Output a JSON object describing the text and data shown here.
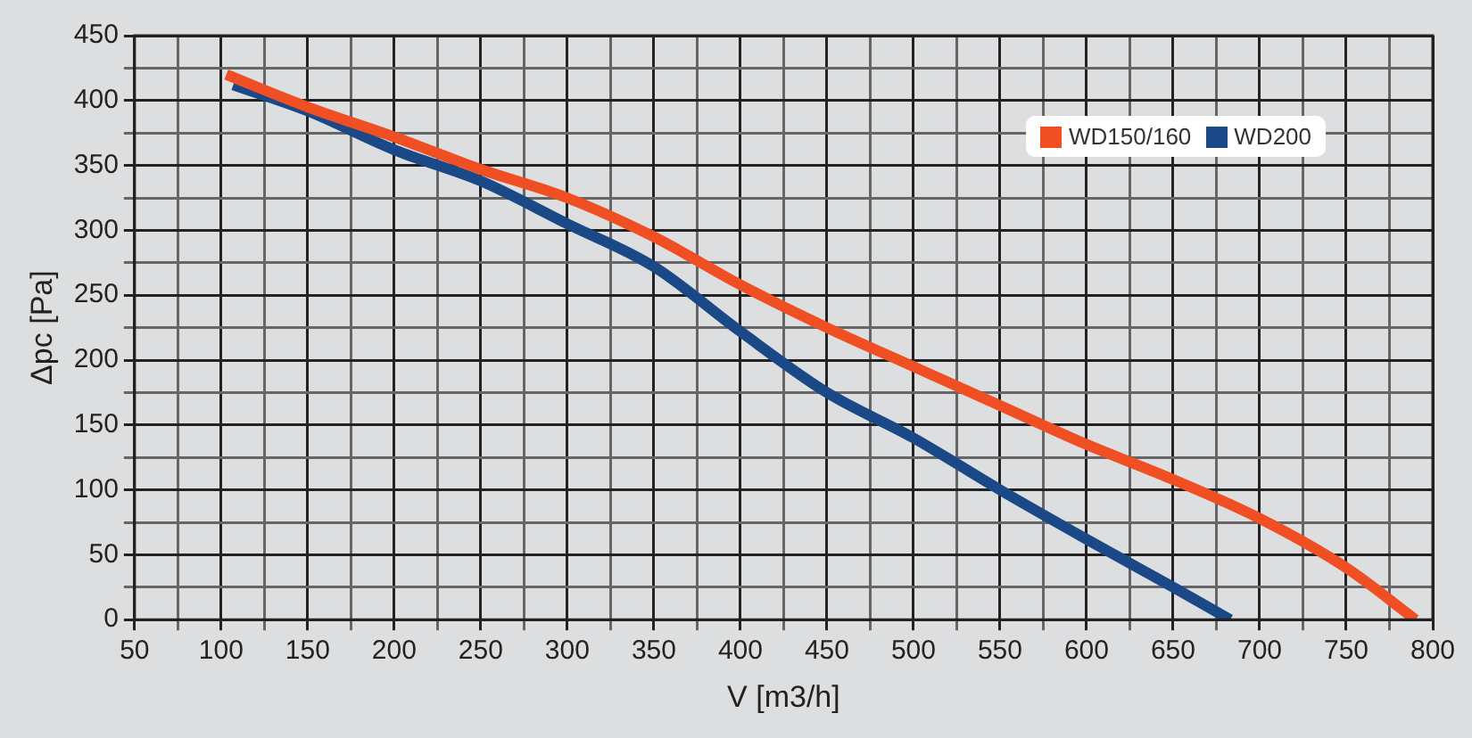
{
  "chart_data": {
    "type": "line",
    "xlabel": "V [m3/h]",
    "ylabel": "Δpc [Pa]",
    "xlim": [
      50,
      800
    ],
    "ylim": [
      0,
      450
    ],
    "xticks": [
      50,
      {
        "value": 75,
        "label": null
      },
      100,
      {
        "value": 125,
        "label": null
      },
      150,
      {
        "value": 175,
        "label": null
      },
      200,
      {
        "value": 225,
        "label": null
      },
      250,
      {
        "value": 275,
        "label": null
      },
      300,
      {
        "value": 325,
        "label": null
      },
      350,
      {
        "value": 375,
        "label": null
      },
      400,
      {
        "value": 425,
        "label": null
      },
      450,
      {
        "value": 475,
        "label": null
      },
      500,
      {
        "value": 525,
        "label": null
      },
      550,
      {
        "value": 575,
        "label": null
      },
      600,
      {
        "value": 625,
        "label": null
      },
      650,
      {
        "value": 675,
        "label": null
      },
      700,
      {
        "value": 725,
        "label": null
      },
      750,
      {
        "value": 775,
        "label": null
      },
      800
    ],
    "yticks": [
      0,
      {
        "value": 25,
        "label": null
      },
      50,
      {
        "value": 75,
        "label": null
      },
      100,
      {
        "value": 125,
        "label": null
      },
      150,
      {
        "value": 175,
        "label": null
      },
      200,
      {
        "value": 225,
        "label": null
      },
      250,
      {
        "value": 275,
        "label": null
      },
      300,
      {
        "value": 325,
        "label": null
      },
      350,
      {
        "value": 375,
        "label": null
      },
      400,
      {
        "value": 425,
        "label": null
      },
      450
    ],
    "grid": true,
    "legend": "top right",
    "marker": "none",
    "line_style": "solid",
    "series": [
      {
        "name": "WD150/160",
        "color": "#f04e23",
        "x": [
          103,
          150,
          200,
          250,
          300,
          350,
          400,
          450,
          500,
          550,
          600,
          650,
          700,
          750,
          790
        ],
        "values": [
          420,
          395,
          372,
          347,
          325,
          295,
          258,
          225,
          195,
          165,
          135,
          108,
          78,
          40,
          0
        ]
      },
      {
        "name": "WD200",
        "color": "#1b4886",
        "x": [
          107,
          150,
          200,
          250,
          300,
          350,
          400,
          450,
          500,
          550,
          600,
          650,
          683
        ],
        "values": [
          412,
          392,
          362,
          338,
          305,
          272,
          222,
          175,
          140,
          100,
          62,
          25,
          0
        ]
      }
    ]
  }
}
